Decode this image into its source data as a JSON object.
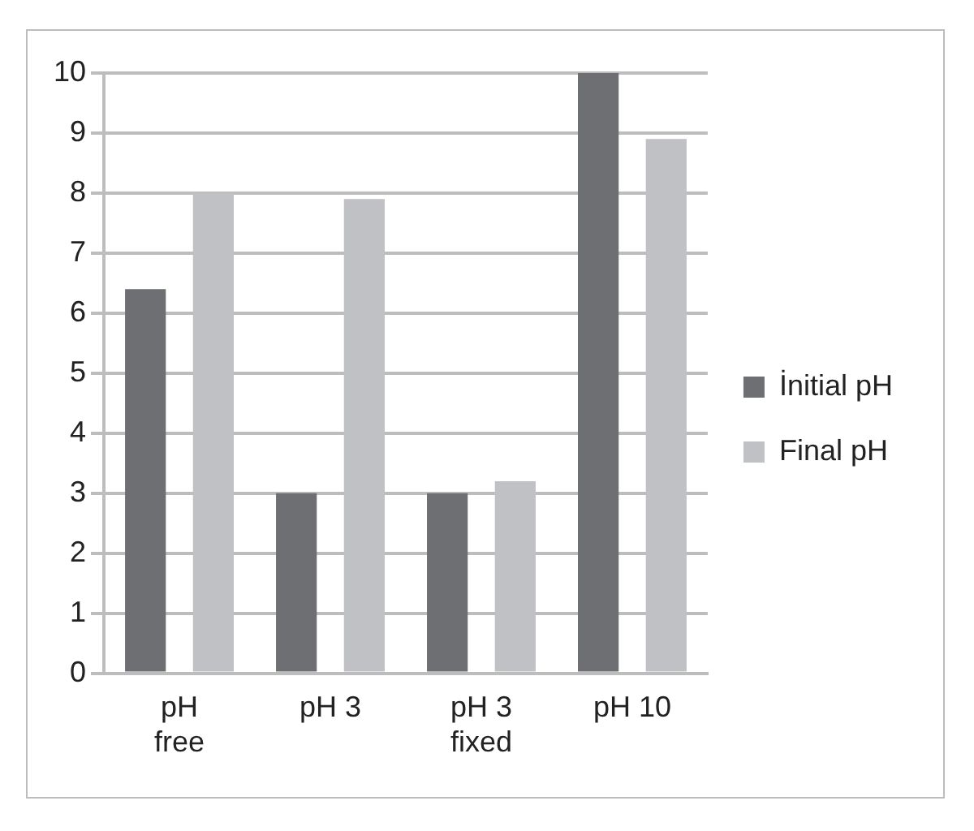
{
  "chart_data": {
    "type": "bar",
    "categories": [
      "pH free",
      "pH 3",
      "pH 3 fixed",
      "pH 10"
    ],
    "series": [
      {
        "name": "İnitial pH",
        "color": "#6e6f73",
        "values": [
          6.4,
          3.0,
          3.0,
          10.0
        ]
      },
      {
        "name": "Final pH",
        "color": "#c0c1c4",
        "values": [
          8.0,
          7.9,
          3.2,
          8.9
        ]
      }
    ],
    "ylim": [
      0,
      10
    ],
    "yticks": [
      0,
      1,
      2,
      3,
      4,
      5,
      6,
      7,
      8,
      9,
      10
    ],
    "grid": "y",
    "legend": "right"
  }
}
